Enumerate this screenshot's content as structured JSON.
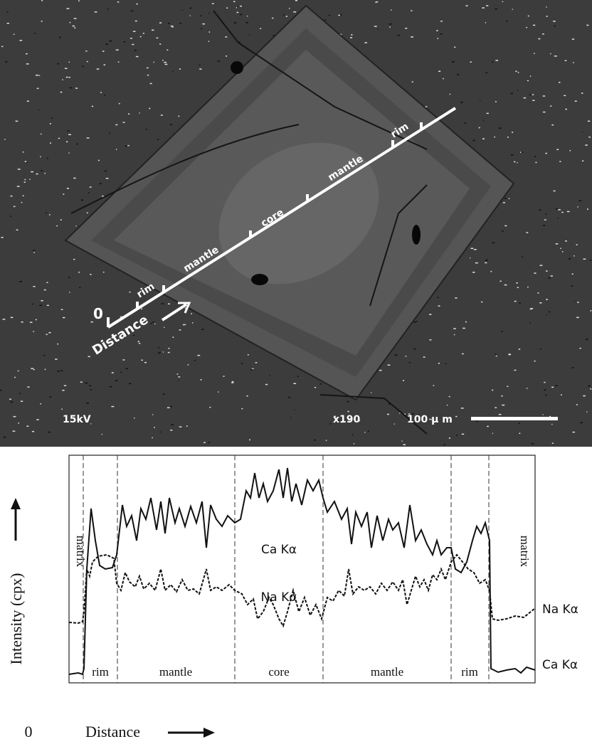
{
  "sem": {
    "zones": [
      "rim",
      "mantle",
      "core",
      "mantle",
      "rim"
    ],
    "origin": "0",
    "distance": "Distance",
    "voltage": "15kV",
    "magnification": "x190",
    "scale_bar": "100 μ m"
  },
  "profile": {
    "y_label": "Intensity (cpx)",
    "left_region": "matrix",
    "right_region": "matrix",
    "zones": [
      "rim",
      "mantle",
      "core",
      "mantle",
      "rim"
    ],
    "ca_label": "Ca Kα",
    "na_label": "Na Kα",
    "right_na_label": "Na Kα",
    "right_ca_label": "Ca Kα",
    "origin": "0",
    "x_label": "Distance"
  }
}
